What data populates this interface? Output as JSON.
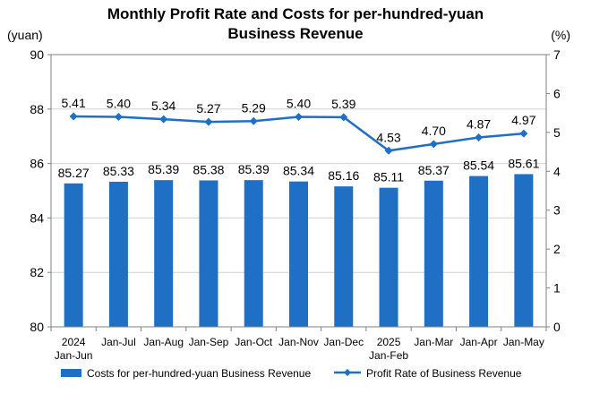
{
  "chart_data": {
    "type": "bar+line",
    "title_lines": [
      "Monthly Profit Rate and Costs for per-hundred-yuan",
      "Business Revenue"
    ],
    "left_axis": {
      "unit": "(yuan)",
      "min": 80,
      "max": 90,
      "ticks": [
        "80",
        "82",
        "84",
        "86",
        "88",
        "90"
      ]
    },
    "right_axis": {
      "unit": "(%)",
      "min": 0,
      "max": 7,
      "ticks": [
        "0",
        "1",
        "2",
        "3",
        "4",
        "5",
        "6",
        "7"
      ]
    },
    "categories": [
      [
        "2024",
        "Jan-Jun"
      ],
      [
        "Jan-Jul"
      ],
      [
        "Jan-Aug"
      ],
      [
        "Jan-Sep"
      ],
      [
        "Jan-Oct"
      ],
      [
        "Jan-Nov"
      ],
      [
        "Jan-Dec"
      ],
      [
        "2025",
        "Jan-Feb"
      ],
      [
        "Jan-Mar"
      ],
      [
        "Jan-Apr"
      ],
      [
        "Jan-May"
      ]
    ],
    "series": [
      {
        "name": "Costs for per-hundred-yuan Business Revenue",
        "type": "bar",
        "axis": "left",
        "color": "#1f6fc5",
        "values": [
          85.27,
          85.33,
          85.39,
          85.38,
          85.39,
          85.34,
          85.16,
          85.11,
          85.37,
          85.54,
          85.61
        ],
        "labels": [
          "85.27",
          "85.33",
          "85.39",
          "85.38",
          "85.39",
          "85.34",
          "85.16",
          "85.11",
          "85.37",
          "85.54",
          "85.61"
        ]
      },
      {
        "name": "Profit Rate of Business Revenue",
        "type": "line",
        "axis": "right",
        "color": "#1f6fc5",
        "values": [
          5.41,
          5.4,
          5.34,
          5.27,
          5.29,
          5.4,
          5.39,
          4.53,
          4.7,
          4.87,
          4.97
        ],
        "labels": [
          "5.41",
          "5.40",
          "5.34",
          "5.27",
          "5.29",
          "5.40",
          "5.39",
          "4.53",
          "4.70",
          "4.87",
          "4.97"
        ]
      }
    ],
    "legend_position": "bottom",
    "grid": "horizontal"
  }
}
